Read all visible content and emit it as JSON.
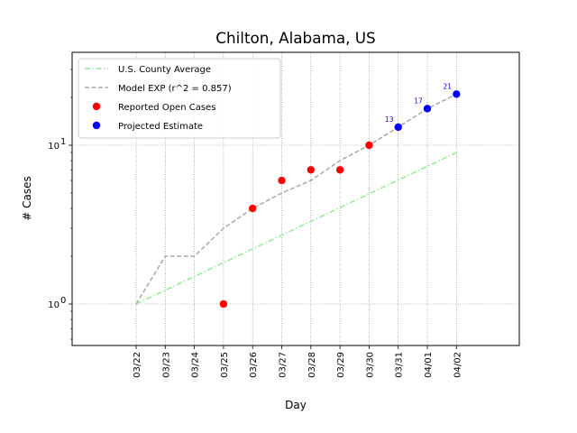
{
  "chart_data": {
    "type": "line",
    "title": "Chilton, Alabama, US",
    "xlabel": "Day",
    "ylabel": "# Cases",
    "y_scale": "log",
    "ylim": [
      0.55,
      40
    ],
    "y_ticks": [
      {
        "value": 1,
        "label": "10",
        "exp": "0"
      },
      {
        "value": 10,
        "label": "10",
        "exp": "1"
      }
    ],
    "categories": [
      "03/22",
      "03/23",
      "03/24",
      "03/25",
      "03/26",
      "03/27",
      "03/28",
      "03/29",
      "03/30",
      "03/31",
      "04/01",
      "04/02"
    ],
    "grid": true,
    "legend_position": "top-left",
    "series": [
      {
        "name": "U.S. County Average",
        "kind": "line",
        "style": "dashdot",
        "color": "#90ee90",
        "x": [
          "03/22",
          "04/02"
        ],
        "values": [
          1,
          9
        ]
      },
      {
        "name": "Model EXP (r^2 = 0.857)",
        "kind": "line",
        "style": "dashed",
        "color": "#a9a9a9",
        "x": [
          "03/22",
          "03/23",
          "03/24",
          "03/25",
          "03/26",
          "03/27",
          "03/28",
          "03/29",
          "03/30",
          "03/31",
          "04/01",
          "04/02"
        ],
        "values": [
          1,
          2,
          2,
          3,
          4,
          5,
          6,
          8,
          10,
          13,
          17,
          21
        ]
      },
      {
        "name": "Reported Open Cases",
        "kind": "scatter",
        "color": "#ff0000",
        "x": [
          "03/25",
          "03/26",
          "03/27",
          "03/28",
          "03/29",
          "03/30"
        ],
        "values": [
          1,
          4,
          6,
          7,
          7,
          10
        ]
      },
      {
        "name": "Projected Estimate",
        "kind": "scatter",
        "color": "#0000ff",
        "x": [
          "03/31",
          "04/01",
          "04/02"
        ],
        "values": [
          13,
          17,
          21
        ],
        "labels": [
          "13",
          "17",
          "21"
        ]
      }
    ]
  }
}
